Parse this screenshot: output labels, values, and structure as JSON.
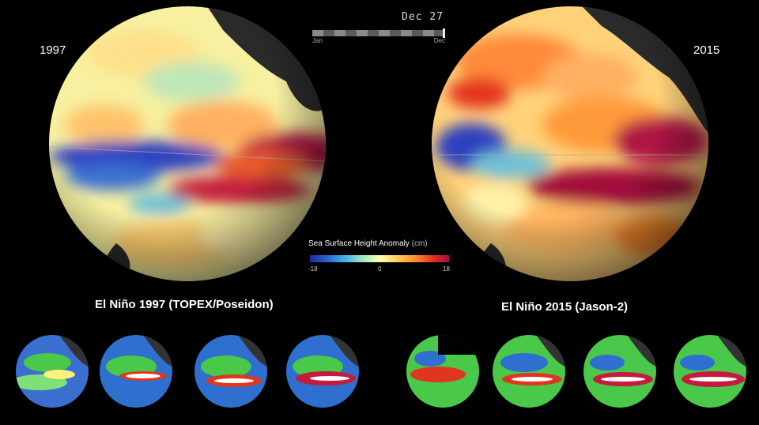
{
  "years": {
    "left": "1997",
    "right": "2015"
  },
  "timeline": {
    "date": "Dec 27",
    "start_label": "Jan",
    "end_label": "Dec",
    "progress": 1.0
  },
  "colorbar": {
    "title": "Sea Surface Height Anomaly",
    "unit": "(cm)",
    "min": "-18",
    "mid": "0",
    "max": "18"
  },
  "captions": {
    "left": "El Niño 1997 (TOPEX/Poseidon)",
    "right": "El Niño 2015 (Jason-2)"
  },
  "colors": {
    "background": "#000000",
    "warm": "#a30c3a",
    "cool": "#1b2a9a"
  }
}
